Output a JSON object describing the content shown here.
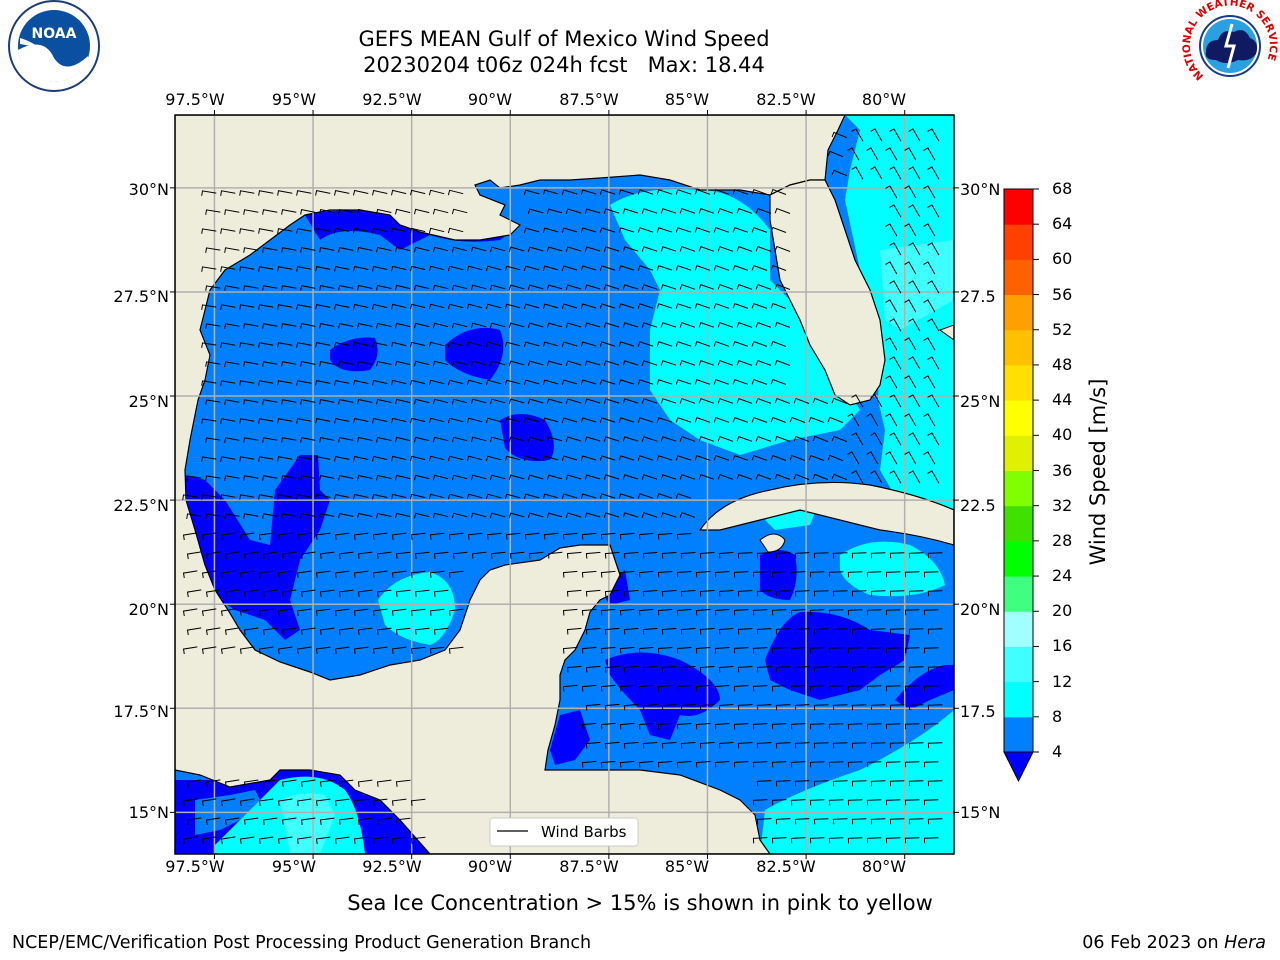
{
  "title": {
    "line1": "GEFS MEAN Gulf of Mexico Wind Speed",
    "line2": "20230204 t06z 024h fcst   Max: 18.44"
  },
  "logos": {
    "left": {
      "name": "noaa-logo",
      "text": "NOAA"
    },
    "right": {
      "name": "nws-logo",
      "text": "NATIONAL WEATHER SERVICE"
    }
  },
  "map": {
    "projection": "PlateCarree",
    "lon_range": [
      -98.5,
      -78.75
    ],
    "lat_range": [
      14.0,
      31.75
    ],
    "lon_ticks": [
      "97.5°W",
      "95°W",
      "92.5°W",
      "90°W",
      "87.5°W",
      "85°W",
      "82.5°W",
      "80°W"
    ],
    "lat_ticks_left": [
      "30°N",
      "27.5°N",
      "25°N",
      "22.5°N",
      "20°N",
      "17.5°N",
      "15°N"
    ],
    "lat_ticks_right": [
      "30°N",
      "27.5",
      "25°N",
      "22.5",
      "20°N",
      "17.5",
      "15°N"
    ],
    "grid": true,
    "land_color": "#eeeddc",
    "legend": {
      "label": "Wind Barbs",
      "placement": "bottom-center"
    }
  },
  "colorbar": {
    "title": "Wind Speed [m/s]",
    "ticks": [
      "68",
      "64",
      "60",
      "56",
      "52",
      "48",
      "44",
      "40",
      "36",
      "32",
      "28",
      "24",
      "20",
      "16",
      "12",
      "8",
      "4"
    ],
    "levels": [
      4,
      8,
      12,
      16,
      20,
      24,
      28,
      32,
      36,
      40,
      44,
      48,
      52,
      56,
      60,
      64,
      68
    ],
    "colors": [
      "#0080ff",
      "#00ffff",
      "#40ffff",
      "#80ffff",
      "#a0ffff",
      "#40ff80",
      "#00ff00",
      "#40e000",
      "#80ff00",
      "#c0ff00",
      "#e0f000",
      "#ffff00",
      "#ffe000",
      "#ffc000",
      "#ffa000",
      "#ff8000",
      "#ff6000",
      "#ff4000",
      "#ff0000"
    ],
    "under_color": "#0000ff",
    "extend": "min"
  },
  "note": "Sea Ice Concentration > 15% is shown in pink to yellow",
  "footer": {
    "left": "NCEP/EMC/Verification Post Processing Product Generation Branch",
    "date": "06 Feb 2023 on ",
    "host": "Hera"
  }
}
